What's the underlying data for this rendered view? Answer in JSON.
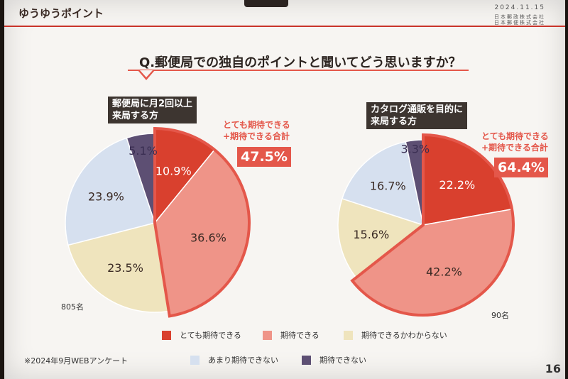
{
  "header": {
    "brand": "ゆうゆうポイント",
    "date": "2024.11.15",
    "company1": "日本郵政株式会社",
    "company2": "日本郵便株式会社"
  },
  "question": "Q.郵便局での独自のポイントと聞いてどう思いますか？",
  "colors": {
    "very": "#d9402e",
    "expect": "#ef9488",
    "unsure": "#efe4bd",
    "notmuch": "#d6e0ef",
    "none": "#5d4f73",
    "highlight": "#e4574a"
  },
  "chart_data": [
    {
      "type": "pie",
      "title": "郵便局に月2回以上来局する方",
      "title_lines": [
        "郵便局に月2回以上",
        "来局する方"
      ],
      "respondents": "805名",
      "categories": [
        "とても期待できる",
        "期待できる",
        "期待できるかわからない",
        "あまり期待できない",
        "期待できない"
      ],
      "values": [
        10.9,
        36.6,
        23.5,
        23.9,
        5.1
      ],
      "labels": [
        "10.9%",
        "36.6%",
        "23.5%",
        "23.9%",
        "5.1%"
      ],
      "highlight": {
        "label_lines": [
          "とても期待できる",
          "+期待できる合計"
        ],
        "value": "47.5%"
      }
    },
    {
      "type": "pie",
      "title": "カタログ通販を目的に来局する方",
      "title_lines": [
        "カタログ通販を目的に",
        "来局する方"
      ],
      "respondents": "90名",
      "categories": [
        "とても期待できる",
        "期待できる",
        "期待できるかわからない",
        "あまり期待できない",
        "期待できない"
      ],
      "values": [
        22.2,
        42.2,
        15.6,
        16.7,
        3.3
      ],
      "labels": [
        "22.2%",
        "42.2%",
        "15.6%",
        "16.7%",
        "3.3%"
      ],
      "highlight": {
        "label_lines": [
          "とても期待できる",
          "+期待できる合計"
        ],
        "value": "64.4%"
      }
    }
  ],
  "legend": [
    {
      "label": "とても期待できる",
      "key": "very"
    },
    {
      "label": "期待できる",
      "key": "expect"
    },
    {
      "label": "期待できるかわからない",
      "key": "unsure"
    },
    {
      "label": "あまり期待できない",
      "key": "notmuch"
    },
    {
      "label": "期待できない",
      "key": "none"
    }
  ],
  "footnote": "※2024年9月WEBアンケート",
  "page_number": "16"
}
